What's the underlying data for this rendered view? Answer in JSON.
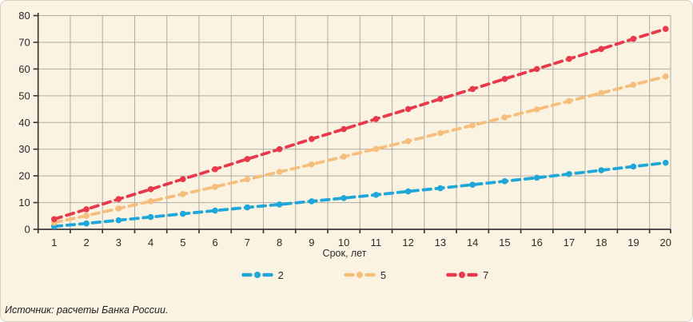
{
  "chart_data": {
    "type": "line",
    "title": "",
    "xlabel": "Срок, лет",
    "ylabel": "",
    "ylim": [
      0,
      80
    ],
    "ytick_step": 10,
    "yticks": [
      "0",
      "10",
      "20",
      "30",
      "40",
      "50",
      "60",
      "70",
      "80"
    ],
    "categories": [
      "1",
      "2",
      "3",
      "4",
      "5",
      "6",
      "7",
      "8",
      "9",
      "10",
      "11",
      "12",
      "13",
      "14",
      "15",
      "16",
      "17",
      "18",
      "19",
      "20"
    ],
    "grid": true,
    "legend_position": "bottom",
    "line_style": "dashed-with-dots",
    "series": [
      {
        "name": "2",
        "color": "#1EA7D8",
        "values": [
          1.1,
          2.2,
          3.4,
          4.6,
          5.8,
          7.0,
          8.2,
          9.3,
          10.5,
          11.7,
          12.9,
          14.2,
          15.4,
          16.7,
          18.0,
          19.3,
          20.7,
          22.1,
          23.5,
          24.9
        ]
      },
      {
        "name": "5",
        "color": "#F6BE7C",
        "values": [
          2.5,
          5.1,
          7.8,
          10.5,
          13.2,
          15.9,
          18.7,
          21.5,
          24.3,
          27.2,
          30.1,
          33.0,
          36.0,
          38.9,
          41.9,
          44.9,
          48.0,
          51.0,
          54.1,
          57.2
        ]
      },
      {
        "name": "7",
        "color": "#E7394B",
        "values": [
          3.8,
          7.5,
          11.3,
          15.0,
          18.8,
          22.5,
          26.3,
          30.0,
          33.8,
          37.5,
          41.3,
          45.0,
          48.8,
          52.5,
          56.3,
          60.0,
          63.8,
          67.5,
          71.3,
          75.0
        ]
      }
    ]
  },
  "source_note": "Источник: расчеты Банка России.",
  "colors": {
    "background": "#FBF3E2",
    "card_border": "#D8D1C2",
    "gridline": "#AFABA3",
    "axis": "#3A3A3A",
    "text": "#2B2B2B"
  }
}
